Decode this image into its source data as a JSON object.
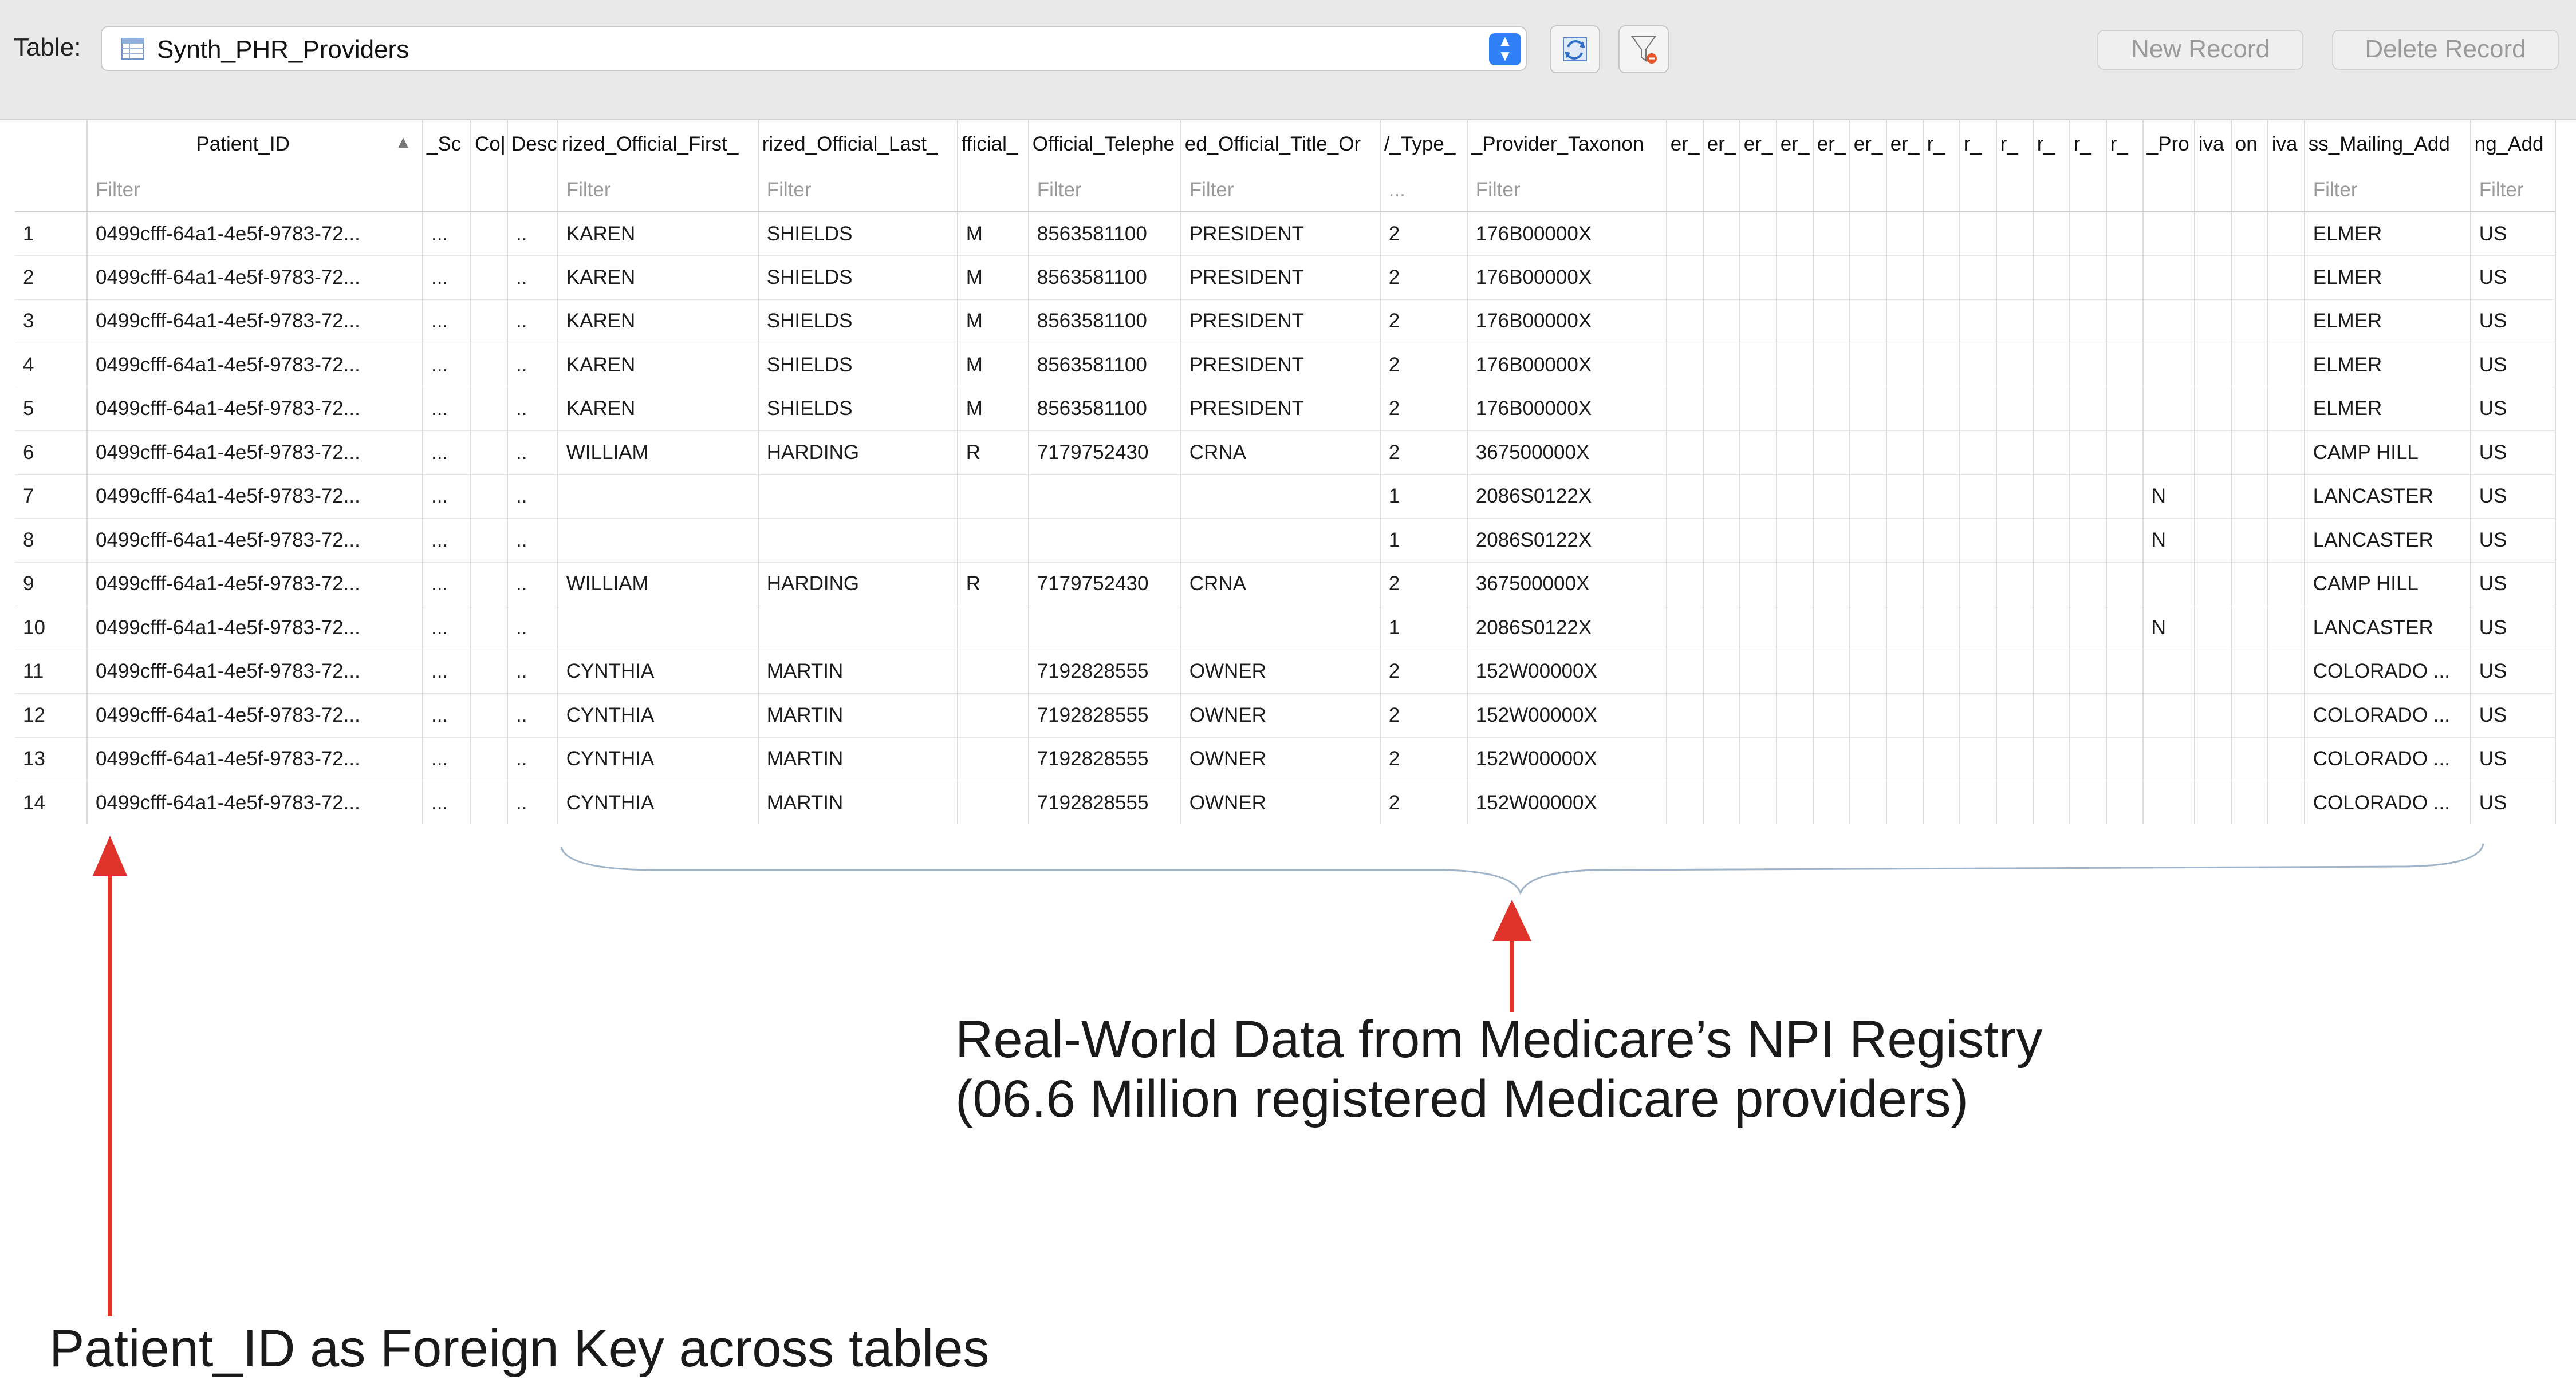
{
  "toolbar": {
    "table_label": "Table:",
    "table_name": "Synth_PHR_Providers",
    "new_record": "New Record",
    "delete_record": "Delete Record"
  },
  "grid": {
    "sorted_column": "Patient_ID",
    "sort_direction": "ascending",
    "columns": [
      {
        "header": "",
        "filter": ""
      },
      {
        "header": "Patient_ID",
        "filter": "Filter"
      },
      {
        "header": "_Sc",
        "filter": ""
      },
      {
        "header": "Co|",
        "filter": ""
      },
      {
        "header": "Desc",
        "filter": ""
      },
      {
        "header": "rized_Official_First_",
        "filter": "Filter"
      },
      {
        "header": "rized_Official_Last_",
        "filter": "Filter"
      },
      {
        "header": "fficial_",
        "filter": ""
      },
      {
        "header": "Official_Telephe",
        "filter": "Filter"
      },
      {
        "header": "ed_Official_Title_Or",
        "filter": "Filter"
      },
      {
        "header": "/_Type_",
        "filter": "..."
      },
      {
        "header": "_Provider_Taxonon",
        "filter": "Filter"
      },
      {
        "header": "er_",
        "filter": ""
      },
      {
        "header": "er_",
        "filter": ""
      },
      {
        "header": "er_",
        "filter": ""
      },
      {
        "header": "er_",
        "filter": ""
      },
      {
        "header": "er_",
        "filter": ""
      },
      {
        "header": "er_",
        "filter": ""
      },
      {
        "header": "er_",
        "filter": ""
      },
      {
        "header": "r_",
        "filter": ""
      },
      {
        "header": "r_",
        "filter": ""
      },
      {
        "header": "r_",
        "filter": ""
      },
      {
        "header": "r_",
        "filter": ""
      },
      {
        "header": "r_",
        "filter": ""
      },
      {
        "header": "r_",
        "filter": ""
      },
      {
        "header": "_Pro",
        "filter": ""
      },
      {
        "header": "iva",
        "filter": ""
      },
      {
        "header": "on",
        "filter": ""
      },
      {
        "header": "iva",
        "filter": ""
      },
      {
        "header": "ss_Mailing_Add",
        "filter": "Filter"
      },
      {
        "header": "ng_Add",
        "filter": "Filter"
      }
    ],
    "rows": [
      {
        "n": "1",
        "id": "0499cfff-64a1-4e5f-9783-72...",
        "sc": "...",
        "co": "",
        "desc": "..",
        "first": "KAREN",
        "last": "SHIELDS",
        "off": "M",
        "tel": "8563581100",
        "title": "PRESIDENT",
        "type": "2",
        "tax": "176B00000X",
        "pro": "",
        "city": "ELMER",
        "cty": "US"
      },
      {
        "n": "2",
        "id": "0499cfff-64a1-4e5f-9783-72...",
        "sc": "...",
        "co": "",
        "desc": "..",
        "first": "KAREN",
        "last": "SHIELDS",
        "off": "M",
        "tel": "8563581100",
        "title": "PRESIDENT",
        "type": "2",
        "tax": "176B00000X",
        "pro": "",
        "city": "ELMER",
        "cty": "US"
      },
      {
        "n": "3",
        "id": "0499cfff-64a1-4e5f-9783-72...",
        "sc": "...",
        "co": "",
        "desc": "..",
        "first": "KAREN",
        "last": "SHIELDS",
        "off": "M",
        "tel": "8563581100",
        "title": "PRESIDENT",
        "type": "2",
        "tax": "176B00000X",
        "pro": "",
        "city": "ELMER",
        "cty": "US"
      },
      {
        "n": "4",
        "id": "0499cfff-64a1-4e5f-9783-72...",
        "sc": "...",
        "co": "",
        "desc": "..",
        "first": "KAREN",
        "last": "SHIELDS",
        "off": "M",
        "tel": "8563581100",
        "title": "PRESIDENT",
        "type": "2",
        "tax": "176B00000X",
        "pro": "",
        "city": "ELMER",
        "cty": "US"
      },
      {
        "n": "5",
        "id": "0499cfff-64a1-4e5f-9783-72...",
        "sc": "...",
        "co": "",
        "desc": "..",
        "first": "KAREN",
        "last": "SHIELDS",
        "off": "M",
        "tel": "8563581100",
        "title": "PRESIDENT",
        "type": "2",
        "tax": "176B00000X",
        "pro": "",
        "city": "ELMER",
        "cty": "US"
      },
      {
        "n": "6",
        "id": "0499cfff-64a1-4e5f-9783-72...",
        "sc": "...",
        "co": "",
        "desc": "..",
        "first": "WILLIAM",
        "last": "HARDING",
        "off": "R",
        "tel": "7179752430",
        "title": "CRNA",
        "type": "2",
        "tax": "367500000X",
        "pro": "",
        "city": "CAMP HILL",
        "cty": "US"
      },
      {
        "n": "7",
        "id": "0499cfff-64a1-4e5f-9783-72...",
        "sc": "...",
        "co": "",
        "desc": "..",
        "first": "",
        "last": "",
        "off": "",
        "tel": "",
        "title": "",
        "type": "1",
        "tax": "2086S0122X",
        "pro": "N",
        "city": "LANCASTER",
        "cty": "US"
      },
      {
        "n": "8",
        "id": "0499cfff-64a1-4e5f-9783-72...",
        "sc": "...",
        "co": "",
        "desc": "..",
        "first": "",
        "last": "",
        "off": "",
        "tel": "",
        "title": "",
        "type": "1",
        "tax": "2086S0122X",
        "pro": "N",
        "city": "LANCASTER",
        "cty": "US"
      },
      {
        "n": "9",
        "id": "0499cfff-64a1-4e5f-9783-72...",
        "sc": "...",
        "co": "",
        "desc": "..",
        "first": "WILLIAM",
        "last": "HARDING",
        "off": "R",
        "tel": "7179752430",
        "title": "CRNA",
        "type": "2",
        "tax": "367500000X",
        "pro": "",
        "city": "CAMP HILL",
        "cty": "US"
      },
      {
        "n": "10",
        "id": "0499cfff-64a1-4e5f-9783-72...",
        "sc": "...",
        "co": "",
        "desc": "..",
        "first": "",
        "last": "",
        "off": "",
        "tel": "",
        "title": "",
        "type": "1",
        "tax": "2086S0122X",
        "pro": "N",
        "city": "LANCASTER",
        "cty": "US"
      },
      {
        "n": "11",
        "id": "0499cfff-64a1-4e5f-9783-72...",
        "sc": "...",
        "co": "",
        "desc": "..",
        "first": "CYNTHIA",
        "last": "MARTIN",
        "off": "",
        "tel": "7192828555",
        "title": "OWNER",
        "type": "2",
        "tax": "152W00000X",
        "pro": "",
        "city": "COLORADO ...",
        "cty": "US"
      },
      {
        "n": "12",
        "id": "0499cfff-64a1-4e5f-9783-72...",
        "sc": "...",
        "co": "",
        "desc": "..",
        "first": "CYNTHIA",
        "last": "MARTIN",
        "off": "",
        "tel": "7192828555",
        "title": "OWNER",
        "type": "2",
        "tax": "152W00000X",
        "pro": "",
        "city": "COLORADO ...",
        "cty": "US"
      },
      {
        "n": "13",
        "id": "0499cfff-64a1-4e5f-9783-72...",
        "sc": "...",
        "co": "",
        "desc": "..",
        "first": "CYNTHIA",
        "last": "MARTIN",
        "off": "",
        "tel": "7192828555",
        "title": "OWNER",
        "type": "2",
        "tax": "152W00000X",
        "pro": "",
        "city": "COLORADO ...",
        "cty": "US"
      },
      {
        "n": "14",
        "id": "0499cfff-64a1-4e5f-9783-72...",
        "sc": "...",
        "co": "",
        "desc": "..",
        "first": "CYNTHIA",
        "last": "MARTIN",
        "off": "",
        "tel": "7192828555",
        "title": "OWNER",
        "type": "2",
        "tax": "152W00000X",
        "pro": "",
        "city": "COLORADO ...",
        "cty": "US"
      }
    ]
  },
  "annotations": {
    "npi_line1": "Real-World Data from Medicare’s NPI Registry",
    "npi_line2": "(06.6 Million registered Medicare providers)",
    "patient_id_note": "Patient_ID as Foreign Key across tables"
  },
  "colors": {
    "arrow": "#e0342a",
    "brace": "#9fb4c8",
    "select_accent": "#2f7ff6"
  }
}
